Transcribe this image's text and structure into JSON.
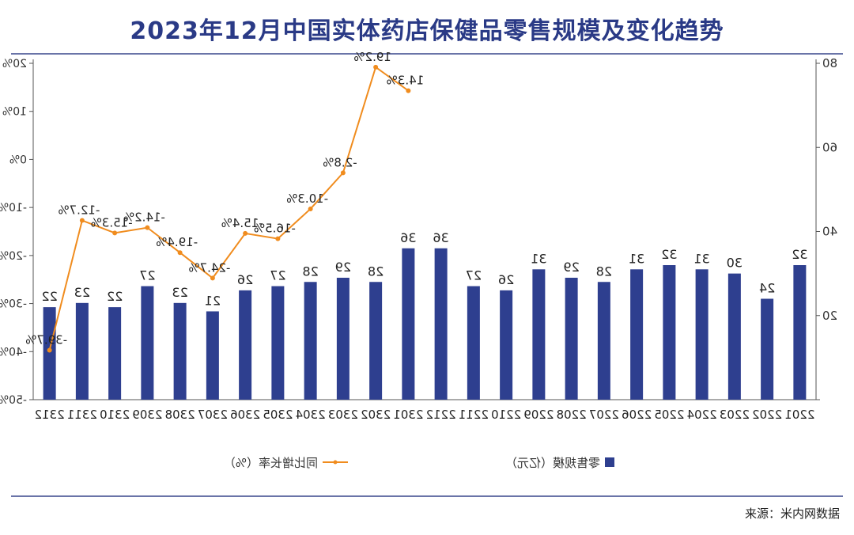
{
  "title": "2023年12月中国实体药店保健品零售规模及变化趋势",
  "source": "来源：米内网数据",
  "chart_data": {
    "type": "bar",
    "categories": [
      "2201",
      "2202",
      "2203",
      "2204",
      "2205",
      "2206",
      "2207",
      "2208",
      "2209",
      "2210",
      "2211",
      "2212",
      "2301",
      "2302",
      "2303",
      "2304",
      "2305",
      "2306",
      "2307",
      "2308",
      "2309",
      "2310",
      "2311",
      "2312"
    ],
    "series": [
      {
        "name": "零售规模（亿元）",
        "type": "bar",
        "color": "#2e3f8f",
        "axis": "left",
        "values": [
          32,
          24,
          30,
          31,
          32,
          31,
          28,
          29,
          31,
          26,
          27,
          36,
          36,
          28,
          29,
          28,
          27,
          26,
          21,
          23,
          27,
          22,
          23,
          22
        ],
        "labels": [
          "32",
          "24",
          "30",
          "31",
          "32",
          "31",
          "28",
          "29",
          "31",
          "26",
          "27",
          "36",
          "36",
          "28",
          "29",
          "28",
          "27",
          "26",
          "21",
          "23",
          "27",
          "22",
          "23",
          "22"
        ]
      },
      {
        "name": "同比增长率（%）",
        "type": "line",
        "color": "#f08c1e",
        "axis": "right",
        "values": [
          null,
          null,
          null,
          null,
          null,
          null,
          null,
          null,
          null,
          null,
          null,
          null,
          14.3,
          19.2,
          -2.8,
          -10.3,
          -16.5,
          -15.4,
          -24.7,
          -19.4,
          -14.2,
          -15.3,
          -12.7,
          -39.7
        ],
        "labels": [
          "",
          "",
          "",
          "",
          "",
          "",
          "",
          "",
          "",
          "",
          "",
          "",
          "14.3%",
          "19.2%",
          "-2.8%",
          "-10.3%",
          "-16.5%",
          "-15.4%",
          "-24.7%",
          "-19.4%",
          "-14.2%",
          "-15.3%",
          "-12.7%",
          "-39.7%"
        ]
      }
    ],
    "left_axis": {
      "ylim": [
        0,
        80
      ],
      "ticks": [
        0,
        20,
        40,
        60,
        80
      ],
      "tick_labels": [
        "",
        "20",
        "40",
        "60",
        "80"
      ]
    },
    "right_axis": {
      "ylim": [
        -50,
        20
      ],
      "ticks": [
        -50,
        -40,
        -30,
        -20,
        -10,
        0,
        10,
        20
      ],
      "tick_labels": [
        "-50%",
        "-40%",
        "-30%",
        "-20%",
        "-10%",
        "0%",
        "10%",
        "20%"
      ]
    },
    "legend_position": "bottom",
    "mirrored": true
  }
}
